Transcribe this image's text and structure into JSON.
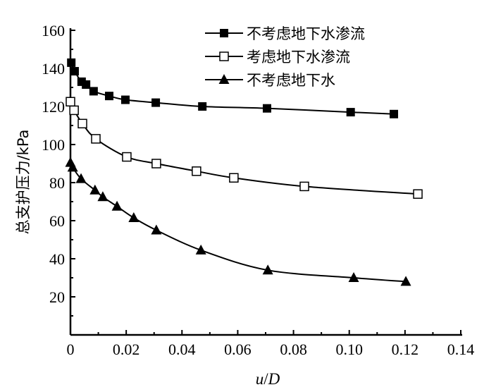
{
  "chart_data": {
    "type": "line",
    "xlabel": "u/D",
    "xlabel_parts": {
      "var1": "u",
      "sep": "/",
      "var2": "D"
    },
    "ylabel": "总支护压力/kPa",
    "xlim": [
      0,
      0.14
    ],
    "ylim": [
      0,
      160
    ],
    "xticks": [
      "0",
      "0.02",
      "0.04",
      "0.06",
      "0.08",
      "0.10",
      "0.12",
      "0.14"
    ],
    "yticks": [
      "20",
      "40",
      "60",
      "80",
      "100",
      "120",
      "140",
      "160"
    ],
    "grid": false,
    "legend_position": "top-right",
    "series": [
      {
        "name": "不考虑地下水渗流",
        "marker": "filled-square",
        "color": "#000000",
        "x": [
          0.0003,
          0.0015,
          0.004,
          0.0056,
          0.0083,
          0.0139,
          0.0197,
          0.0306,
          0.0473,
          0.0705,
          0.1005,
          0.116
        ],
        "y": [
          143,
          138.5,
          133,
          131.5,
          128,
          125.5,
          123.5,
          122,
          120,
          119,
          117,
          116
        ]
      },
      {
        "name": "考虑地下水渗流",
        "marker": "open-square",
        "color": "#000000",
        "x": [
          0.0,
          0.0013,
          0.0043,
          0.0091,
          0.0202,
          0.0308,
          0.0452,
          0.0586,
          0.0839,
          0.1246
        ],
        "y": [
          122.5,
          118,
          111,
          103,
          93.5,
          90,
          86,
          82.5,
          78,
          74
        ]
      },
      {
        "name": "不考虑地下水",
        "marker": "filled-triangle",
        "color": "#000000",
        "x": [
          0.0,
          0.0008,
          0.0038,
          0.0088,
          0.0116,
          0.0167,
          0.0227,
          0.0308,
          0.0468,
          0.0708,
          0.1016,
          0.1203
        ],
        "y": [
          90.5,
          88,
          82,
          76,
          72.5,
          67.5,
          61.5,
          55,
          44.5,
          34,
          30,
          28
        ]
      }
    ]
  }
}
